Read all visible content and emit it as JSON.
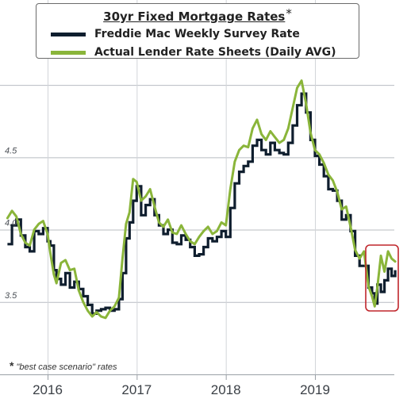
{
  "colors": {
    "freddie": "#0f1e2e",
    "lender": "#8ab53a",
    "grid": "#b8bcc2",
    "highlight": "#c0262c"
  },
  "legend": {
    "title": "30yr Fixed Mortgage Rates",
    "title_mark": "*",
    "items": [
      {
        "label": "Freddie Mac Weekly Survey Rate",
        "color": "#0f1e2e"
      },
      {
        "label": "Actual Lender Rate Sheets (Daily AVG)",
        "color": "#8ab53a"
      }
    ]
  },
  "footnote": {
    "mark": "*",
    "text": "\"best case scenario\" rates"
  },
  "chart_data": {
    "type": "line",
    "title": "30yr Fixed Mortgage Rates",
    "xlabel": "",
    "ylabel": "",
    "xlim": [
      2015.55,
      2019.95
    ],
    "ylim": [
      3.0,
      5.05
    ],
    "x_ticks": [
      2016,
      2017,
      2018,
      2019
    ],
    "x_tick_labels": [
      "2016",
      "2017",
      "2018",
      "2019"
    ],
    "y_ticks": [
      3.5,
      4.0,
      4.5
    ],
    "y_tick_labels": [
      "3.5",
      "4.0",
      "4.5"
    ],
    "grid": true,
    "highlight": {
      "x": [
        2019.58,
        2019.92
      ],
      "y": [
        3.42,
        3.87
      ]
    },
    "series": [
      {
        "name": "Freddie Mac Weekly Survey Rate",
        "points": [
          [
            2015.55,
            3.9
          ],
          [
            2015.6,
            4.03
          ],
          [
            2015.65,
            4.07
          ],
          [
            2015.7,
            3.96
          ],
          [
            2015.75,
            3.88
          ],
          [
            2015.8,
            3.85
          ],
          [
            2015.85,
            3.99
          ],
          [
            2015.9,
            3.97
          ],
          [
            2015.95,
            4.01
          ],
          [
            2016.0,
            3.92
          ],
          [
            2016.03,
            3.89
          ],
          [
            2016.07,
            3.72
          ],
          [
            2016.1,
            3.66
          ],
          [
            2016.15,
            3.62
          ],
          [
            2016.2,
            3.7
          ],
          [
            2016.25,
            3.6
          ],
          [
            2016.3,
            3.64
          ],
          [
            2016.35,
            3.59
          ],
          [
            2016.4,
            3.54
          ],
          [
            2016.45,
            3.48
          ],
          [
            2016.5,
            3.42
          ],
          [
            2016.55,
            3.44
          ],
          [
            2016.6,
            3.45
          ],
          [
            2016.65,
            3.46
          ],
          [
            2016.7,
            3.44
          ],
          [
            2016.75,
            3.45
          ],
          [
            2016.8,
            3.52
          ],
          [
            2016.84,
            3.7
          ],
          [
            2016.88,
            3.94
          ],
          [
            2016.92,
            4.05
          ],
          [
            2016.96,
            4.2
          ],
          [
            2017.0,
            4.3
          ],
          [
            2017.05,
            4.1
          ],
          [
            2017.1,
            4.17
          ],
          [
            2017.15,
            4.21
          ],
          [
            2017.2,
            4.1
          ],
          [
            2017.25,
            4.03
          ],
          [
            2017.3,
            3.97
          ],
          [
            2017.35,
            4.0
          ],
          [
            2017.4,
            3.91
          ],
          [
            2017.45,
            3.9
          ],
          [
            2017.5,
            3.96
          ],
          [
            2017.55,
            3.93
          ],
          [
            2017.6,
            3.88
          ],
          [
            2017.65,
            3.82
          ],
          [
            2017.7,
            3.83
          ],
          [
            2017.75,
            3.88
          ],
          [
            2017.8,
            3.94
          ],
          [
            2017.85,
            3.92
          ],
          [
            2017.9,
            3.95
          ],
          [
            2017.95,
            3.99
          ],
          [
            2018.0,
            3.95
          ],
          [
            2018.05,
            4.15
          ],
          [
            2018.1,
            4.32
          ],
          [
            2018.15,
            4.4
          ],
          [
            2018.2,
            4.44
          ],
          [
            2018.25,
            4.47
          ],
          [
            2018.3,
            4.58
          ],
          [
            2018.35,
            4.62
          ],
          [
            2018.4,
            4.55
          ],
          [
            2018.45,
            4.52
          ],
          [
            2018.5,
            4.6
          ],
          [
            2018.55,
            4.55
          ],
          [
            2018.6,
            4.53
          ],
          [
            2018.65,
            4.52
          ],
          [
            2018.7,
            4.6
          ],
          [
            2018.75,
            4.72
          ],
          [
            2018.8,
            4.86
          ],
          [
            2018.85,
            4.94
          ],
          [
            2018.9,
            4.81
          ],
          [
            2018.95,
            4.62
          ],
          [
            2019.0,
            4.51
          ],
          [
            2019.05,
            4.45
          ],
          [
            2019.1,
            4.37
          ],
          [
            2019.15,
            4.28
          ],
          [
            2019.2,
            4.27
          ],
          [
            2019.25,
            4.2
          ],
          [
            2019.3,
            4.07
          ],
          [
            2019.35,
            4.1
          ],
          [
            2019.4,
            3.99
          ],
          [
            2019.45,
            3.82
          ],
          [
            2019.5,
            3.75
          ],
          [
            2019.55,
            3.75
          ],
          [
            2019.6,
            3.6
          ],
          [
            2019.64,
            3.56
          ],
          [
            2019.67,
            3.49
          ],
          [
            2019.7,
            3.62
          ],
          [
            2019.74,
            3.57
          ],
          [
            2019.78,
            3.65
          ],
          [
            2019.82,
            3.73
          ],
          [
            2019.86,
            3.68
          ],
          [
            2019.9,
            3.72
          ]
        ]
      },
      {
        "name": "Actual Lender Rate Sheets (Daily AVG)",
        "points": [
          [
            2015.55,
            4.08
          ],
          [
            2015.6,
            4.13
          ],
          [
            2015.65,
            4.09
          ],
          [
            2015.7,
            3.97
          ],
          [
            2015.75,
            3.91
          ],
          [
            2015.8,
            3.89
          ],
          [
            2015.85,
            4.0
          ],
          [
            2015.9,
            4.04
          ],
          [
            2015.95,
            4.06
          ],
          [
            2016.0,
            3.97
          ],
          [
            2016.03,
            3.84
          ],
          [
            2016.07,
            3.69
          ],
          [
            2016.1,
            3.63
          ],
          [
            2016.15,
            3.77
          ],
          [
            2016.2,
            3.79
          ],
          [
            2016.25,
            3.72
          ],
          [
            2016.3,
            3.73
          ],
          [
            2016.35,
            3.58
          ],
          [
            2016.4,
            3.5
          ],
          [
            2016.45,
            3.44
          ],
          [
            2016.5,
            3.4
          ],
          [
            2016.55,
            3.43
          ],
          [
            2016.6,
            3.4
          ],
          [
            2016.65,
            3.39
          ],
          [
            2016.7,
            3.44
          ],
          [
            2016.75,
            3.47
          ],
          [
            2016.8,
            3.53
          ],
          [
            2016.84,
            3.8
          ],
          [
            2016.88,
            4.04
          ],
          [
            2016.92,
            4.12
          ],
          [
            2016.96,
            4.35
          ],
          [
            2017.0,
            4.33
          ],
          [
            2017.05,
            4.2
          ],
          [
            2017.1,
            4.23
          ],
          [
            2017.15,
            4.28
          ],
          [
            2017.2,
            4.16
          ],
          [
            2017.25,
            4.05
          ],
          [
            2017.3,
            4.02
          ],
          [
            2017.35,
            4.07
          ],
          [
            2017.4,
            3.98
          ],
          [
            2017.45,
            3.97
          ],
          [
            2017.5,
            4.03
          ],
          [
            2017.55,
            3.97
          ],
          [
            2017.6,
            3.92
          ],
          [
            2017.65,
            3.9
          ],
          [
            2017.7,
            3.95
          ],
          [
            2017.75,
            3.99
          ],
          [
            2017.8,
            4.02
          ],
          [
            2017.85,
            3.97
          ],
          [
            2017.9,
            3.99
          ],
          [
            2017.95,
            4.05
          ],
          [
            2018.0,
            4.03
          ],
          [
            2018.05,
            4.28
          ],
          [
            2018.1,
            4.47
          ],
          [
            2018.15,
            4.55
          ],
          [
            2018.2,
            4.58
          ],
          [
            2018.25,
            4.57
          ],
          [
            2018.3,
            4.7
          ],
          [
            2018.35,
            4.76
          ],
          [
            2018.4,
            4.66
          ],
          [
            2018.45,
            4.62
          ],
          [
            2018.5,
            4.68
          ],
          [
            2018.55,
            4.64
          ],
          [
            2018.6,
            4.6
          ],
          [
            2018.65,
            4.62
          ],
          [
            2018.7,
            4.7
          ],
          [
            2018.75,
            4.84
          ],
          [
            2018.8,
            4.98
          ],
          [
            2018.85,
            5.03
          ],
          [
            2018.9,
            4.87
          ],
          [
            2018.95,
            4.67
          ],
          [
            2019.0,
            4.55
          ],
          [
            2019.05,
            4.52
          ],
          [
            2019.1,
            4.46
          ],
          [
            2019.15,
            4.38
          ],
          [
            2019.2,
            4.34
          ],
          [
            2019.25,
            4.26
          ],
          [
            2019.3,
            4.14
          ],
          [
            2019.35,
            4.16
          ],
          [
            2019.4,
            4.02
          ],
          [
            2019.45,
            3.86
          ],
          [
            2019.5,
            3.8
          ],
          [
            2019.55,
            3.85
          ],
          [
            2019.6,
            3.61
          ],
          [
            2019.64,
            3.54
          ],
          [
            2019.67,
            3.47
          ],
          [
            2019.7,
            3.6
          ],
          [
            2019.74,
            3.82
          ],
          [
            2019.78,
            3.71
          ],
          [
            2019.82,
            3.85
          ],
          [
            2019.86,
            3.8
          ],
          [
            2019.9,
            3.78
          ]
        ]
      }
    ]
  }
}
